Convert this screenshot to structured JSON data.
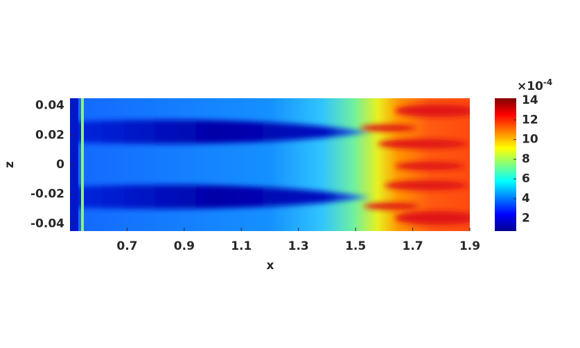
{
  "chart_data": {
    "type": "heatmap",
    "xlabel": "x",
    "ylabel": "z",
    "xlim": [
      0.5,
      1.9
    ],
    "xticks": [
      0.7,
      0.9,
      1.1,
      1.3,
      1.5,
      1.7,
      1.9
    ],
    "ylim": [
      -0.045,
      0.045
    ],
    "yticks": [
      -0.04,
      -0.02,
      0,
      0.02,
      0.04
    ],
    "colormap": "jet",
    "clim": [
      0.7,
      14.2
    ],
    "cticks": [
      2,
      4,
      6,
      8,
      10,
      12,
      14
    ],
    "colorbar_scale": {
      "base": "×10",
      "exponent": "-4"
    }
  }
}
